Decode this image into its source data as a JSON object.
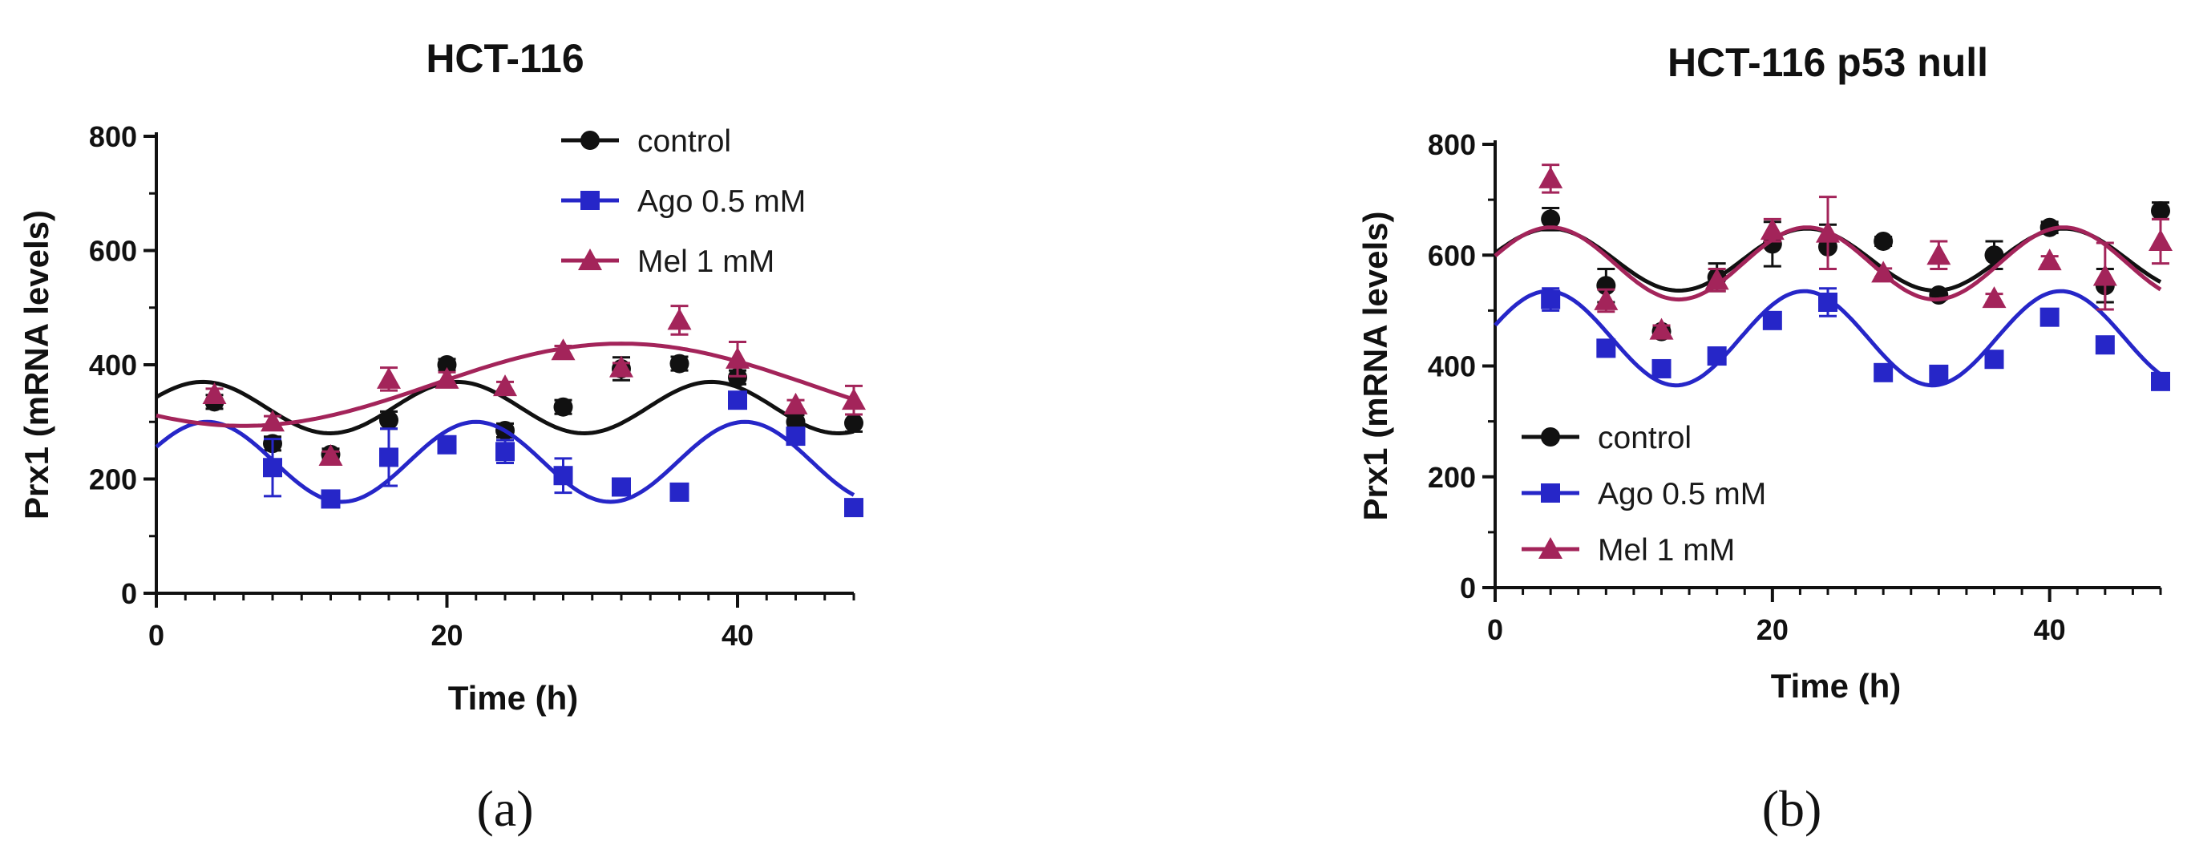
{
  "chart_data": [
    {
      "type": "scatter",
      "title": "HCT-116",
      "panel_label": "(a)",
      "xlabel": "Time (h)",
      "ylabel": "Prx1 (mRNA levels)",
      "xlim": [
        0,
        48
      ],
      "ylim": [
        0,
        800
      ],
      "xticks": [
        0,
        20,
        40
      ],
      "yticks": [
        0,
        200,
        400,
        600,
        800
      ],
      "xtick_labels": [
        "0",
        "20",
        "40"
      ],
      "ytick_labels": [
        "0",
        "200",
        "400",
        "600",
        "800"
      ],
      "legend_position": "top-right",
      "series": [
        {
          "name": "control",
          "color": "#111111",
          "marker": "circle",
          "x": [
            4,
            8,
            12,
            16,
            20,
            24,
            28,
            32,
            36,
            40,
            44,
            48
          ],
          "y": [
            335,
            262,
            243,
            303,
            400,
            285,
            326,
            393,
            402,
            378,
            300,
            298
          ],
          "err": [
            12,
            12,
            10,
            15,
            10,
            12,
            12,
            20,
            12,
            12,
            12,
            15
          ],
          "fit": {
            "mesor": 325,
            "amplitude": 45,
            "period": 17.5,
            "acrophase": 3.2
          }
        },
        {
          "name": "Ago 0.5 mM",
          "color": "#2626c8",
          "marker": "square",
          "x": [
            8,
            12,
            16,
            20,
            24,
            28,
            32,
            36,
            40,
            44,
            48
          ],
          "y": [
            220,
            165,
            238,
            260,
            248,
            206,
            186,
            177,
            338,
            275,
            150
          ],
          "err": [
            50,
            12,
            50,
            12,
            20,
            30,
            10,
            10,
            10,
            10,
            8
          ],
          "fit": {
            "mesor": 230,
            "amplitude": 70,
            "period": 18.5,
            "acrophase": 3.5
          }
        },
        {
          "name": "Mel 1 mM",
          "color": "#a3245a",
          "marker": "triangle",
          "x": [
            4,
            8,
            12,
            16,
            20,
            24,
            28,
            32,
            36,
            40,
            44,
            48
          ],
          "y": [
            348,
            300,
            240,
            375,
            375,
            362,
            425,
            395,
            478,
            410,
            330,
            338
          ],
          "err": [
            10,
            10,
            8,
            20,
            12,
            8,
            8,
            8,
            25,
            30,
            8,
            25
          ],
          "fit": {
            "mesor": 365,
            "amplitude": 72,
            "period": 52,
            "acrophase": 32
          }
        }
      ]
    },
    {
      "type": "scatter",
      "title": "HCT-116 p53 null",
      "panel_label": "(b)",
      "xlabel": "Time (h)",
      "ylabel": "Prx1 (mRNA levels)",
      "xlim": [
        0,
        48
      ],
      "ylim": [
        0,
        800
      ],
      "xticks": [
        0,
        20,
        40
      ],
      "yticks": [
        0,
        200,
        400,
        600,
        800
      ],
      "xtick_labels": [
        "0",
        "20",
        "40"
      ],
      "ytick_labels": [
        "0",
        "200",
        "400",
        "600",
        "800"
      ],
      "legend_position": "bottom-left",
      "series": [
        {
          "name": "control",
          "color": "#111111",
          "marker": "circle",
          "x": [
            4,
            8,
            12,
            16,
            20,
            24,
            28,
            32,
            36,
            40,
            44,
            48
          ],
          "y": [
            665,
            545,
            462,
            560,
            620,
            615,
            625,
            528,
            600,
            650,
            545,
            680
          ],
          "err": [
            20,
            30,
            8,
            25,
            40,
            40,
            8,
            8,
            25,
            10,
            30,
            15
          ],
          "fit": {
            "mesor": 592,
            "amplitude": 56,
            "period": 18.5,
            "acrophase": 22.5
          }
        },
        {
          "name": "Ago 0.5 mM",
          "color": "#2626c8",
          "marker": "square",
          "x": [
            4,
            8,
            12,
            16,
            20,
            24,
            28,
            32,
            36,
            40,
            44,
            48
          ],
          "y": [
            520,
            432,
            395,
            418,
            482,
            515,
            388,
            385,
            412,
            488,
            438,
            372
          ],
          "err": [
            20,
            15,
            8,
            8,
            8,
            25,
            8,
            8,
            8,
            8,
            8,
            8
          ],
          "fit": {
            "mesor": 450,
            "amplitude": 85,
            "period": 18.5,
            "acrophase": 3.8
          }
        },
        {
          "name": "Mel 1 mM",
          "color": "#a3245a",
          "marker": "triangle",
          "x": [
            4,
            8,
            12,
            16,
            20,
            24,
            28,
            32,
            36,
            40,
            44,
            48
          ],
          "y": [
            738,
            518,
            465,
            555,
            645,
            640,
            568,
            600,
            522,
            590,
            562,
            625
          ],
          "err": [
            25,
            20,
            8,
            20,
            20,
            65,
            8,
            25,
            8,
            8,
            60,
            40
          ],
          "fit": {
            "mesor": 585,
            "amplitude": 65,
            "period": 18.5,
            "acrophase": 22.5
          }
        }
      ]
    }
  ]
}
